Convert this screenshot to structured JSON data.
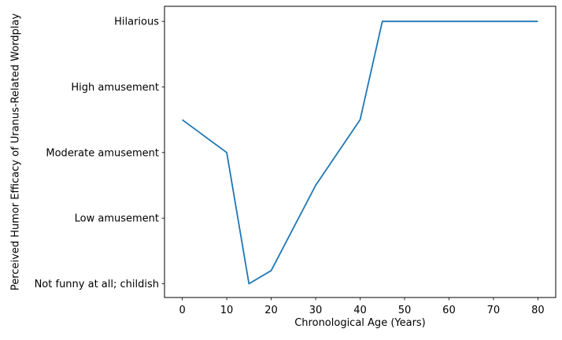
{
  "figure": {
    "background_color": "#ffffff",
    "spine_color": "#000000",
    "text_color": "#000000"
  },
  "chart_data": {
    "type": "line",
    "title": "",
    "xlabel": "Chronological Age (Years)",
    "ylabel": "Perceived Humor Efficacy of Uranus-Related Wordplay",
    "x": [
      0,
      10,
      15,
      20,
      30,
      40,
      45,
      80
    ],
    "y": [
      2.5,
      2,
      0,
      0.2,
      1.5,
      2.5,
      4,
      4
    ],
    "x_ticks": [
      0,
      10,
      20,
      30,
      40,
      50,
      60,
      70,
      80
    ],
    "y_ticks": [
      0,
      1,
      2,
      3,
      4
    ],
    "y_tick_labels": [
      "Not funny at all; childish",
      "Low amusement",
      "Moderate amusement",
      "High amusement",
      "Hilarious"
    ],
    "xlim": [
      -4,
      84
    ],
    "ylim": [
      -0.21,
      4.23
    ],
    "line_color": "#1f77b4",
    "line_width": 1.8,
    "grid": false,
    "legend_position": "none",
    "markers": false
  }
}
